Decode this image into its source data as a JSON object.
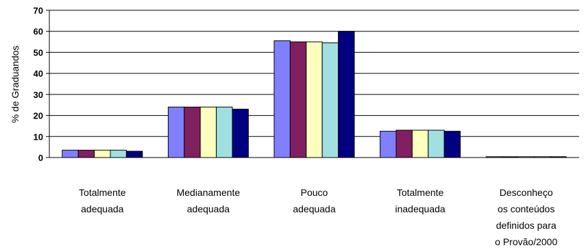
{
  "chart_data": {
    "type": "bar",
    "ylabel": "% de Graduandos",
    "ylim": [
      0,
      70
    ],
    "yticks": [
      0,
      10,
      20,
      30,
      40,
      50,
      60,
      70
    ],
    "grid": true,
    "legend": "none",
    "categories": [
      [
        "Totalmente",
        "adequada"
      ],
      [
        "Medianamente",
        "adequada"
      ],
      [
        "Pouco",
        "adequada"
      ],
      [
        "Totalmente",
        "inadequada"
      ],
      [
        "Desconheço",
        "os conteúdos",
        "definidos para",
        "o Provão/2000"
      ]
    ],
    "series": [
      {
        "color": "#8080ff",
        "values": [
          3.5,
          24.0,
          55.5,
          12.5,
          0.3
        ]
      },
      {
        "color": "#802060",
        "values": [
          3.5,
          24.0,
          55.0,
          13.0,
          0.3
        ]
      },
      {
        "color": "#ffffc0",
        "values": [
          3.5,
          24.0,
          55.0,
          13.0,
          0.3
        ]
      },
      {
        "color": "#a0e0e0",
        "values": [
          3.5,
          24.0,
          54.5,
          13.0,
          0.3
        ]
      },
      {
        "color": "#000080",
        "values": [
          3.0,
          23.0,
          60.0,
          12.5,
          0.3
        ]
      }
    ]
  }
}
